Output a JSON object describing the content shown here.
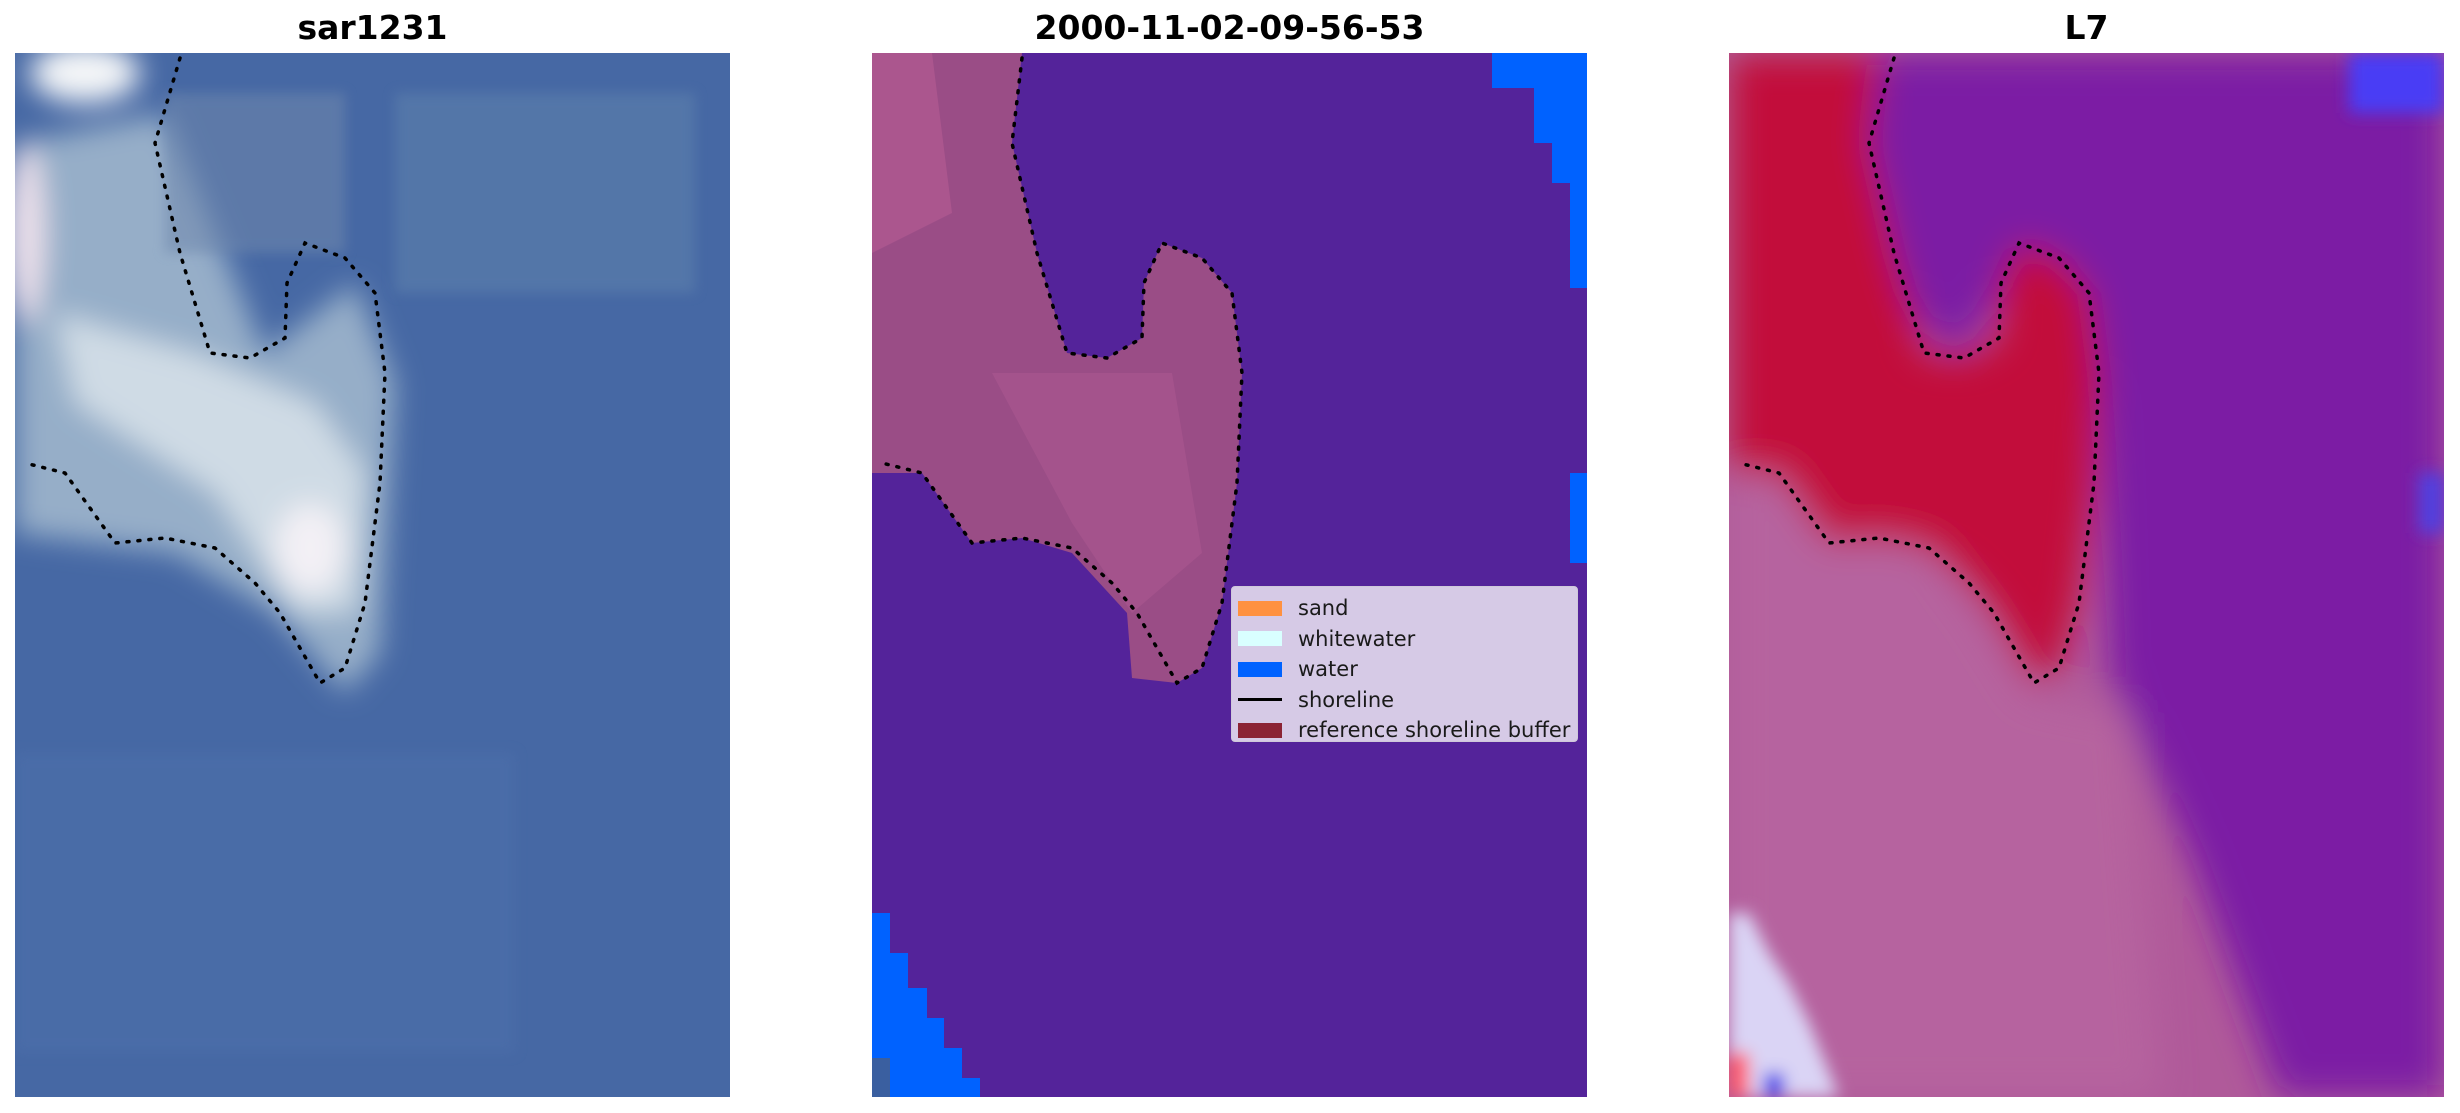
{
  "panels": [
    {
      "title": "sar1231"
    },
    {
      "title": "2000-11-02-09-56-53"
    },
    {
      "title": "L7"
    }
  ],
  "legend": {
    "items": [
      {
        "label": "sand",
        "color": "#ff9140",
        "kind": "patch"
      },
      {
        "label": "whitewater",
        "color": "#d9ffff",
        "kind": "patch"
      },
      {
        "label": "water",
        "color": "#0062ff",
        "kind": "patch"
      },
      {
        "label": "shoreline",
        "color": "#000000",
        "kind": "line"
      },
      {
        "label": "reference shoreline buffer",
        "color": "#8b2334",
        "kind": "patch"
      }
    ]
  },
  "colors": {
    "rgb_background": "#4a6ba3",
    "classified_background": "#54239a",
    "sand_overlay": "#a24e8a",
    "mndwi_land": "#c20a3a",
    "mndwi_water": "#8a1aa4"
  }
}
